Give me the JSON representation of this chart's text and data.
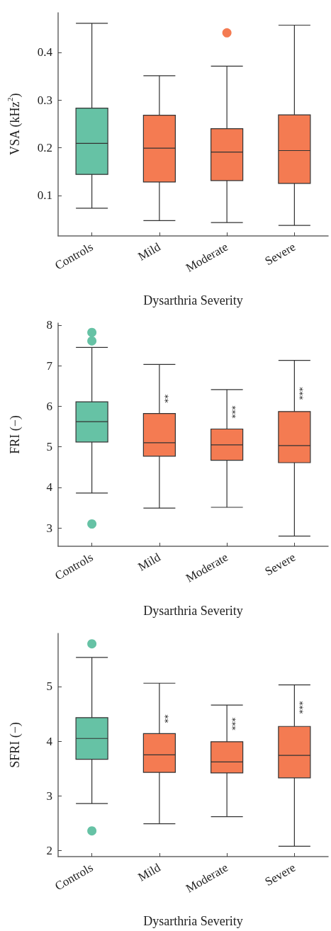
{
  "chart_data": [
    {
      "type": "box",
      "xlabel": "Dysarthria Severity",
      "ylabel": "VSA (kHz$^{2}$)",
      "categories": [
        "Controls",
        "Mild",
        "Moderate",
        "Severe"
      ],
      "colors": [
        "#66c2a5",
        "#f47b52",
        "#f47b52",
        "#f47b52"
      ],
      "ylim": [
        0.015,
        0.483
      ],
      "yticks": [
        0.1,
        0.2,
        0.3,
        0.4
      ],
      "grid": false,
      "boxes": [
        {
          "low": 0.073,
          "q1": 0.144,
          "median": 0.209,
          "q3": 0.283,
          "high": 0.461
        },
        {
          "low": 0.047,
          "q1": 0.128,
          "median": 0.199,
          "q3": 0.268,
          "high": 0.351
        },
        {
          "low": 0.043,
          "q1": 0.131,
          "median": 0.191,
          "q3": 0.24,
          "high": 0.371,
          "outliers": [
            0.441
          ]
        },
        {
          "low": 0.037,
          "q1": 0.125,
          "median": 0.194,
          "q3": 0.269,
          "high": 0.457
        }
      ]
    },
    {
      "type": "box",
      "xlabel": "Dysarthria Severity",
      "ylabel": "FRI (−)",
      "categories": [
        "Controls",
        "Mild",
        "Moderate",
        "Severe"
      ],
      "colors": [
        "#66c2a5",
        "#f47b52",
        "#f47b52",
        "#f47b52"
      ],
      "ylim": [
        2.55,
        8.05
      ],
      "yticks": [
        3,
        4,
        5,
        6,
        7,
        8
      ],
      "grid": false,
      "boxes": [
        {
          "low": 3.86,
          "q1": 5.12,
          "median": 5.62,
          "q3": 6.11,
          "high": 7.45,
          "outliers": [
            7.82,
            7.61,
            3.1
          ]
        },
        {
          "low": 3.49,
          "q1": 4.77,
          "median": 5.1,
          "q3": 5.82,
          "high": 7.03
        },
        {
          "low": 3.51,
          "q1": 4.67,
          "median": 5.05,
          "q3": 5.44,
          "high": 6.41
        },
        {
          "low": 2.8,
          "q1": 4.61,
          "median": 5.03,
          "q3": 5.87,
          "high": 7.13
        }
      ],
      "annotations": [
        {
          "text": "**",
          "x": "Mild",
          "y": 6.08
        },
        {
          "text": "***",
          "x": "Moderate",
          "y": 5.7
        },
        {
          "text": "***",
          "x": "Severe",
          "y": 6.16
        }
      ]
    },
    {
      "type": "box",
      "xlabel": "Dysarthria Severity",
      "ylabel": "SFRI (−)",
      "categories": [
        "Controls",
        "Mild",
        "Moderate",
        "Severe"
      ],
      "colors": [
        "#66c2a5",
        "#f47b52",
        "#f47b52",
        "#f47b52"
      ],
      "ylim": [
        1.89,
        5.97
      ],
      "yticks": [
        2,
        3,
        4,
        5
      ],
      "grid": false,
      "boxes": [
        {
          "low": 2.86,
          "q1": 3.67,
          "median": 4.05,
          "q3": 4.43,
          "high": 5.53,
          "outliers": [
            5.78,
            2.36
          ]
        },
        {
          "low": 2.49,
          "q1": 3.43,
          "median": 3.75,
          "q3": 4.14,
          "high": 5.06
        },
        {
          "low": 2.62,
          "q1": 3.42,
          "median": 3.62,
          "q3": 3.99,
          "high": 4.66
        },
        {
          "low": 2.08,
          "q1": 3.33,
          "median": 3.74,
          "q3": 4.27,
          "high": 5.03
        }
      ],
      "annotations": [
        {
          "text": "**",
          "x": "Mild",
          "y": 4.33
        },
        {
          "text": "***",
          "x": "Moderate",
          "y": 4.2
        },
        {
          "text": "***",
          "x": "Severe",
          "y": 4.5
        }
      ]
    }
  ]
}
